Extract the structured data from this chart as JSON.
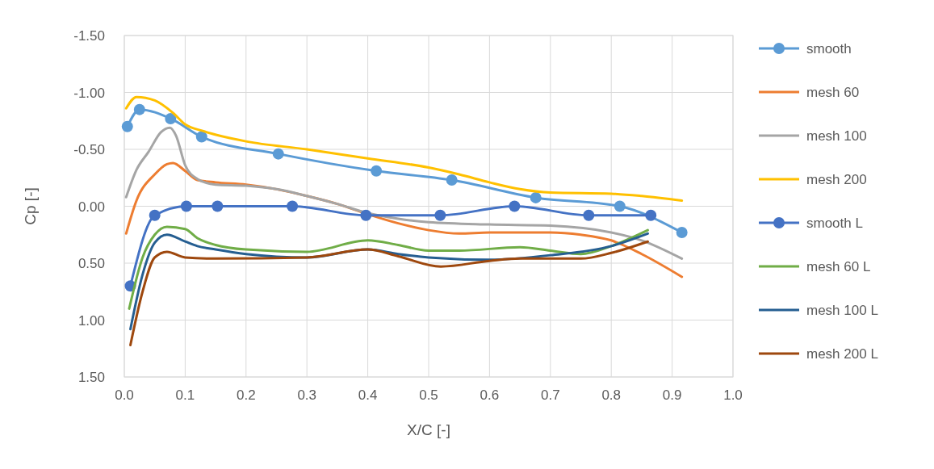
{
  "chart_data": {
    "type": "line",
    "xlabel": "X/C [-]",
    "ylabel": "Cp [-]",
    "xlim": [
      0,
      1
    ],
    "xticks": [
      {
        "value": 0,
        "label": "0.0"
      },
      {
        "value": 0.1,
        "label": "0.1"
      },
      {
        "value": 0.2,
        "label": "0.2"
      },
      {
        "value": 0.3,
        "label": "0.3"
      },
      {
        "value": 0.4,
        "label": "0.4"
      },
      {
        "value": 0.5,
        "label": "0.5"
      },
      {
        "value": 0.6,
        "label": "0.6"
      },
      {
        "value": 0.7,
        "label": "0.7"
      },
      {
        "value": 0.8,
        "label": "0.8"
      },
      {
        "value": 0.9,
        "label": "0.9"
      },
      {
        "value": 1,
        "label": "1.0"
      }
    ],
    "ylim": [
      1.5,
      -1.5
    ],
    "yticks": [
      {
        "value": -1.5,
        "label": "-1.50"
      },
      {
        "value": -1,
        "label": "-1.00"
      },
      {
        "value": -0.5,
        "label": "-0.50"
      },
      {
        "value": 0,
        "label": "0.00"
      },
      {
        "value": 0.5,
        "label": "0.50"
      },
      {
        "value": 1,
        "label": "1.00"
      },
      {
        "value": 1.5,
        "label": "1.50"
      }
    ],
    "grid": true,
    "legend": "right",
    "line_style": "solid",
    "series": [
      {
        "name": "smooth",
        "color": "#5b9bd5",
        "marker": "circle",
        "x": [
          0.005,
          0.025,
          0.076,
          0.127,
          0.253,
          0.414,
          0.538,
          0.676,
          0.814,
          0.916
        ],
        "values": [
          -0.7,
          -0.85,
          -0.77,
          -0.61,
          -0.46,
          -0.31,
          -0.23,
          -0.075,
          0,
          0.23
        ]
      },
      {
        "name": "mesh 60",
        "color": "#ed7d31",
        "marker": "none",
        "x": [
          0.003,
          0.02,
          0.05,
          0.07,
          0.08,
          0.1,
          0.12,
          0.15,
          0.2,
          0.25,
          0.3,
          0.35,
          0.4,
          0.45,
          0.5,
          0.55,
          0.6,
          0.7,
          0.75,
          0.8,
          0.85,
          0.916
        ],
        "values": [
          0.24,
          -0.05,
          -0.28,
          -0.37,
          -0.38,
          -0.31,
          -0.23,
          -0.21,
          -0.19,
          -0.15,
          -0.09,
          -0.02,
          0.07,
          0.15,
          0.21,
          0.24,
          0.23,
          0.23,
          0.25,
          0.3,
          0.42,
          0.62
        ]
      },
      {
        "name": "mesh 100",
        "color": "#a5a5a5",
        "marker": "none",
        "x": [
          0.003,
          0.02,
          0.04,
          0.06,
          0.075,
          0.085,
          0.1,
          0.12,
          0.15,
          0.2,
          0.25,
          0.3,
          0.35,
          0.4,
          0.45,
          0.5,
          0.6,
          0.7,
          0.8,
          0.85,
          0.916
        ],
        "values": [
          -0.08,
          -0.32,
          -0.48,
          -0.65,
          -0.69,
          -0.62,
          -0.36,
          -0.24,
          -0.19,
          -0.18,
          -0.15,
          -0.09,
          -0.02,
          0.06,
          0.11,
          0.14,
          0.16,
          0.17,
          0.23,
          0.3,
          0.46
        ]
      },
      {
        "name": "mesh 200",
        "color": "#ffc000",
        "marker": "none",
        "x": [
          0.003,
          0.02,
          0.05,
          0.08,
          0.1,
          0.13,
          0.2,
          0.3,
          0.4,
          0.5,
          0.55,
          0.6,
          0.65,
          0.7,
          0.8,
          0.85,
          0.916
        ],
        "values": [
          -0.86,
          -0.96,
          -0.93,
          -0.82,
          -0.72,
          -0.66,
          -0.57,
          -0.5,
          -0.42,
          -0.34,
          -0.28,
          -0.21,
          -0.15,
          -0.12,
          -0.11,
          -0.09,
          -0.05
        ]
      },
      {
        "name": "smooth L",
        "color": "#4472c4",
        "marker": "circle",
        "x": [
          0.01,
          0.05,
          0.102,
          0.153,
          0.276,
          0.397,
          0.519,
          0.641,
          0.763,
          0.865
        ],
        "values": [
          0.7,
          0.08,
          0,
          0,
          0,
          0.08,
          0.08,
          0,
          0.08,
          0.08
        ]
      },
      {
        "name": "mesh 60 L",
        "color": "#70ad47",
        "marker": "none",
        "x": [
          0.008,
          0.03,
          0.05,
          0.07,
          0.1,
          0.12,
          0.15,
          0.2,
          0.3,
          0.4,
          0.45,
          0.5,
          0.55,
          0.65,
          0.7,
          0.75,
          0.8,
          0.86
        ],
        "values": [
          0.9,
          0.45,
          0.25,
          0.18,
          0.2,
          0.28,
          0.34,
          0.38,
          0.4,
          0.3,
          0.34,
          0.39,
          0.39,
          0.36,
          0.39,
          0.42,
          0.35,
          0.21
        ]
      },
      {
        "name": "mesh 100 L",
        "color": "#255e91",
        "marker": "none",
        "x": [
          0.01,
          0.03,
          0.05,
          0.07,
          0.1,
          0.12,
          0.15,
          0.2,
          0.3,
          0.4,
          0.45,
          0.5,
          0.6,
          0.7,
          0.8,
          0.86
        ],
        "values": [
          1.08,
          0.6,
          0.32,
          0.25,
          0.31,
          0.35,
          0.38,
          0.42,
          0.45,
          0.38,
          0.42,
          0.45,
          0.47,
          0.43,
          0.35,
          0.24
        ]
      },
      {
        "name": "mesh 200 L",
        "color": "#9e480e",
        "marker": "none",
        "x": [
          0.01,
          0.03,
          0.05,
          0.07,
          0.1,
          0.15,
          0.3,
          0.4,
          0.45,
          0.52,
          0.6,
          0.65,
          0.75,
          0.8,
          0.86
        ],
        "values": [
          1.22,
          0.75,
          0.45,
          0.4,
          0.45,
          0.46,
          0.45,
          0.38,
          0.44,
          0.53,
          0.48,
          0.46,
          0.46,
          0.41,
          0.31
        ]
      }
    ]
  }
}
